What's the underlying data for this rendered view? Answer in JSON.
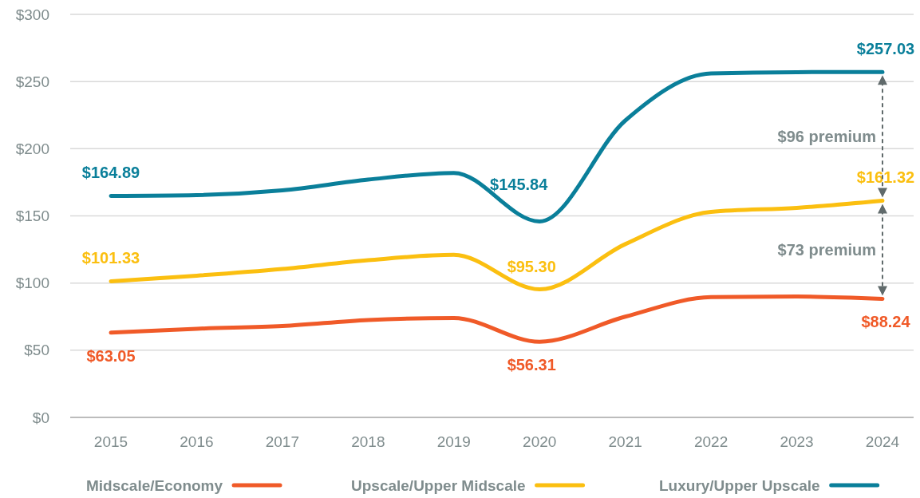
{
  "chart_data": {
    "type": "line",
    "categories": [
      "2015",
      "2016",
      "2017",
      "2018",
      "2019",
      "2020",
      "2021",
      "2022",
      "2023",
      "2024"
    ],
    "ylim": [
      0,
      300
    ],
    "yticks": [
      {
        "value": 0,
        "label": "$0"
      },
      {
        "value": 50,
        "label": "$50"
      },
      {
        "value": 100,
        "label": "$100"
      },
      {
        "value": 150,
        "label": "$150"
      },
      {
        "value": 200,
        "label": "$200"
      },
      {
        "value": 250,
        "label": "$250"
      },
      {
        "value": 300,
        "label": "$300"
      }
    ],
    "grid": "y",
    "legend": "bottom",
    "line_style": "solid",
    "series": [
      {
        "name": "Midscale/Economy",
        "color": "#f05a28",
        "values": [
          63.05,
          66,
          68,
          72.5,
          74,
          56.31,
          75,
          89.5,
          90,
          88.24
        ],
        "value_labels": [
          "$63.05",
          null,
          null,
          null,
          null,
          "$56.31",
          null,
          null,
          null,
          "$88.24"
        ]
      },
      {
        "name": "Upscale/Upper Midscale",
        "color": "#fbbf10",
        "values": [
          101.33,
          105.5,
          110.5,
          117,
          121,
          95.3,
          129,
          153,
          156,
          161.32
        ],
        "value_labels": [
          "$101.33",
          null,
          null,
          null,
          null,
          "$95.30",
          null,
          null,
          null,
          "$161.32"
        ]
      },
      {
        "name": "Luxury/Upper Upscale",
        "color": "#0a7f9a",
        "values": [
          164.89,
          165.5,
          169,
          177,
          182,
          145.84,
          221,
          256,
          257,
          257.03
        ],
        "value_labels": [
          "$164.89",
          null,
          null,
          null,
          null,
          "$145.84",
          null,
          null,
          null,
          "$257.03"
        ]
      }
    ],
    "annotations": [
      "$96 premium",
      "$73 premium"
    ]
  }
}
